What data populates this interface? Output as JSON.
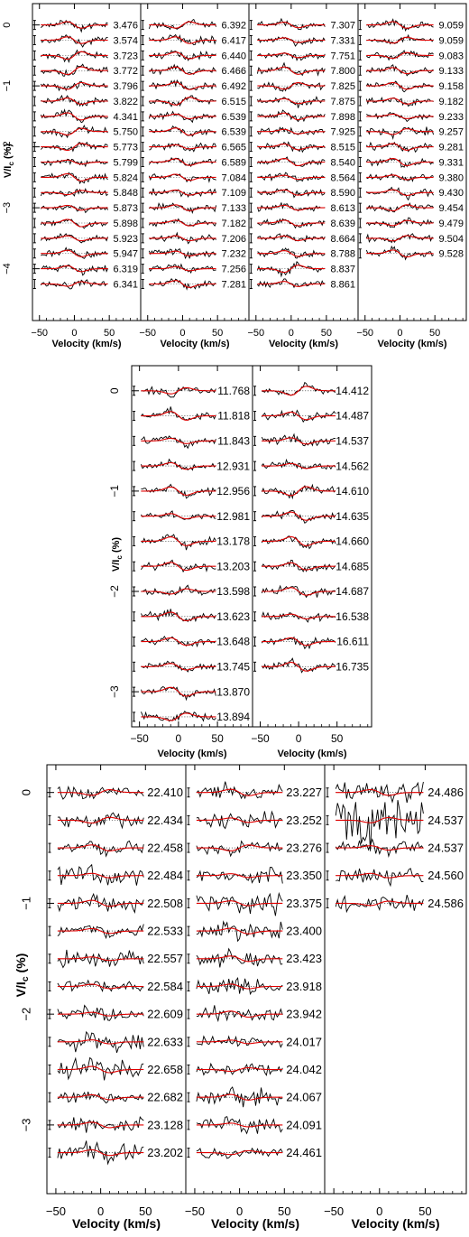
{
  "chart_data": [
    {
      "type": "line",
      "title": "",
      "xlabel": "Velocity (km/s)",
      "ylabel": "V/I_c (%)",
      "xlim": [
        -60,
        95
      ],
      "ylim": [
        -4.85,
        0.35
      ],
      "x_ticks": [
        -50,
        0,
        50
      ],
      "y_ticks": [
        0,
        -1,
        -2,
        -3,
        -4
      ],
      "series_colors": {
        "observed": "#000000",
        "model": "#e00000"
      },
      "columns": [
        [
          "3.476",
          "3.574",
          "3.723",
          "3.772",
          "3.796",
          "3.822",
          "4.341",
          "5.750",
          "5.773",
          "5.799",
          "5.824",
          "5.848",
          "5.873",
          "5.898",
          "5.923",
          "5.947",
          "6.319",
          "6.341"
        ],
        [
          "6.392",
          "6.417",
          "6.440",
          "6.466",
          "6.492",
          "6.515",
          "6.539",
          "6.539",
          "6.565",
          "6.589",
          "7.084",
          "7.109",
          "7.133",
          "7.182",
          "7.206",
          "7.232",
          "7.256",
          "7.281"
        ],
        [
          "7.307",
          "7.331",
          "7.751",
          "7.800",
          "7.825",
          "7.875",
          "7.898",
          "7.925",
          "8.515",
          "8.540",
          "8.564",
          "8.590",
          "8.613",
          "8.639",
          "8.664",
          "8.788",
          "8.837",
          "8.861"
        ],
        [
          "9.059",
          "9.059",
          "9.083",
          "9.133",
          "9.158",
          "9.182",
          "9.233",
          "9.257",
          "9.281",
          "9.331",
          "9.380",
          "9.430",
          "9.454",
          "9.479",
          "9.504",
          "9.528"
        ]
      ]
    },
    {
      "type": "line",
      "title": "",
      "xlabel": "Velocity (km/s)",
      "ylabel": "V/I_c (%)",
      "xlim": [
        -60,
        95
      ],
      "ylim": [
        -3.35,
        0.25
      ],
      "x_ticks": [
        -50,
        0,
        50
      ],
      "y_ticks": [
        0,
        -1,
        -2,
        -3
      ],
      "series_colors": {
        "observed": "#000000",
        "model": "#e00000"
      },
      "columns": [
        [
          "11.768",
          "11.818",
          "11.843",
          "12.931",
          "12.956",
          "12.981",
          "13.178",
          "13.203",
          "13.598",
          "13.623",
          "13.648",
          "13.745",
          "13.870",
          "13.894"
        ],
        [
          "14.412",
          "14.487",
          "14.537",
          "14.562",
          "14.610",
          "14.635",
          "14.660",
          "14.685",
          "14.687",
          "16.538",
          "16.611",
          "16.735"
        ]
      ]
    },
    {
      "type": "line",
      "title": "",
      "xlabel": "Velocity (km/s)",
      "ylabel": "V/I_c (%)",
      "xlim": [
        -60,
        95
      ],
      "ylim": [
        -3.62,
        0.25
      ],
      "x_ticks": [
        -50,
        0,
        50
      ],
      "y_ticks": [
        0,
        -1,
        -2,
        -3
      ],
      "series_colors": {
        "observed": "#000000",
        "model": "#e00000"
      },
      "columns": [
        [
          "22.410",
          "22.434",
          "22.458",
          "22.484",
          "22.508",
          "22.533",
          "22.557",
          "22.584",
          "22.609",
          "22.633",
          "22.658",
          "22.682",
          "23.128",
          "23.202"
        ],
        [
          "23.227",
          "23.252",
          "23.276",
          "23.350",
          "23.375",
          "23.400",
          "23.423",
          "23.918",
          "23.942",
          "24.017",
          "24.042",
          "24.067",
          "24.091",
          "24.461"
        ],
        [
          "24.486",
          "24.537",
          "24.537",
          "24.560",
          "24.586"
        ]
      ]
    }
  ]
}
